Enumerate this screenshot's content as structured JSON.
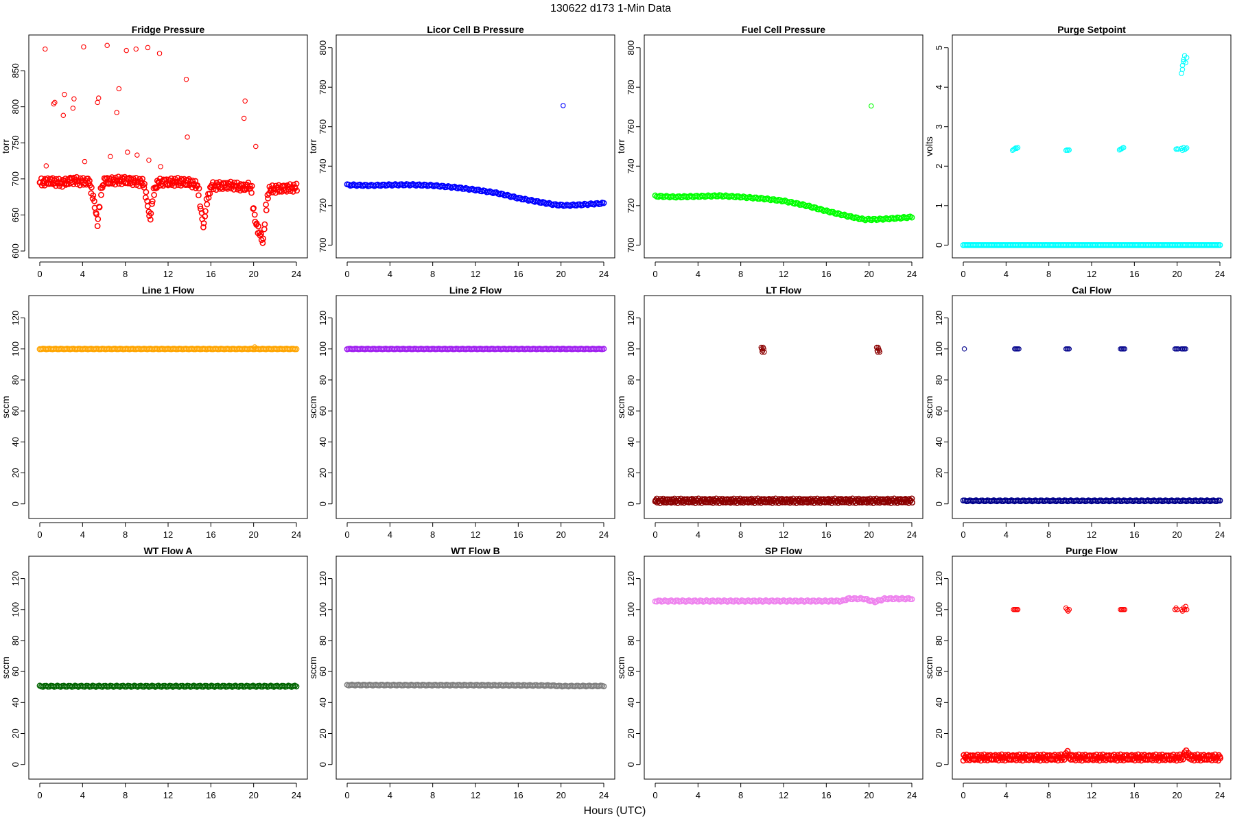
{
  "figure": {
    "title": "130622   d173   1-Min Data",
    "xlabel": "Hours (UTC)"
  },
  "chart_data": [
    {
      "type": "scatter",
      "title": "Fridge Pressure",
      "ylabel": "torr",
      "xlabel": "",
      "xlim": [
        0,
        24
      ],
      "ylim": [
        600,
        890
      ],
      "xticks": [
        0,
        4,
        8,
        12,
        16,
        20,
        24
      ],
      "yticks": [
        600,
        650,
        700,
        750,
        800,
        850
      ],
      "color": "#ff0000",
      "series": [
        {
          "style": "band",
          "x": [
            0,
            1,
            2,
            3,
            4,
            4.6,
            5,
            5.4,
            5.7,
            6,
            8,
            9,
            9.7,
            10,
            10.3,
            10.6,
            11,
            13,
            14,
            14.8,
            15,
            15.3,
            15.6,
            16,
            18,
            19,
            19.5,
            19.8,
            20,
            20.5,
            20.9,
            21.1,
            21.4,
            22,
            24
          ],
          "y": [
            695,
            697,
            694,
            698,
            696,
            697,
            672,
            640,
            682,
            697,
            698,
            696,
            695,
            670,
            642,
            680,
            695,
            696,
            695,
            690,
            660,
            636,
            668,
            690,
            691,
            688,
            690,
            686,
            650,
            625,
            613,
            655,
            685,
            686,
            688
          ],
          "spread": 6
        },
        {
          "style": "points",
          "x": [
            0.5,
            0.6,
            1.3,
            1.4,
            2.2,
            2.3,
            3.1,
            3.2,
            4.1,
            4.2,
            5.4,
            5.5,
            6.3,
            6.6,
            7.2,
            7.4,
            8.1,
            8.2,
            9.0,
            9.1,
            10.1,
            10.2,
            11.2,
            11.3,
            13.7,
            13.8,
            19.1,
            19.2,
            20.2
          ],
          "y": [
            880,
            718,
            804,
            806,
            788,
            817,
            798,
            811,
            883,
            724,
            806,
            812,
            885,
            731,
            792,
            825,
            878,
            737,
            880,
            733,
            882,
            726,
            874,
            717,
            838,
            758,
            784,
            808,
            745
          ]
        }
      ]
    },
    {
      "type": "scatter",
      "title": "Licor Cell B Pressure",
      "ylabel": "torr",
      "xlabel": "",
      "xlim": [
        0,
        24
      ],
      "ylim": [
        697,
        803
      ],
      "xticks": [
        0,
        4,
        8,
        12,
        16,
        20,
        24
      ],
      "yticks": [
        700,
        720,
        740,
        760,
        780,
        800
      ],
      "color": "#0000ff",
      "series": [
        {
          "style": "band",
          "x": [
            0,
            2,
            4,
            6,
            8,
            10,
            12,
            14,
            16,
            18,
            19.5,
            20.5,
            22,
            24
          ],
          "y": [
            730.5,
            730.2,
            730.5,
            730.6,
            730.2,
            729.3,
            728.0,
            726.4,
            723.8,
            721.8,
            720.4,
            720.1,
            720.5,
            721.2
          ],
          "spread": 0.4
        },
        {
          "style": "points",
          "x": [
            20.2
          ],
          "y": [
            770.7
          ]
        }
      ]
    },
    {
      "type": "scatter",
      "title": "Fuel Cell Pressure",
      "ylabel": "torr",
      "xlabel": "",
      "xlim": [
        0,
        24
      ],
      "ylim": [
        697,
        803
      ],
      "xticks": [
        0,
        4,
        8,
        12,
        16,
        20,
        24
      ],
      "yticks": [
        700,
        720,
        740,
        760,
        780,
        800
      ],
      "color": "#00ff00",
      "series": [
        {
          "style": "band",
          "x": [
            0,
            2,
            4,
            6,
            8,
            10,
            12,
            14,
            16,
            18,
            19.5,
            20.5,
            22,
            24
          ],
          "y": [
            724.8,
            724.4,
            724.7,
            725.0,
            724.4,
            723.6,
            722.4,
            720.2,
            717.3,
            714.7,
            713.0,
            713.0,
            713.4,
            714.2
          ],
          "spread": 0.4
        },
        {
          "style": "points",
          "x": [
            20.2
          ],
          "y": [
            770.5
          ]
        }
      ]
    },
    {
      "type": "scatter",
      "title": "Purge Setpoint",
      "ylabel": "volts",
      "xlabel": "",
      "xlim": [
        0,
        24
      ],
      "ylim": [
        -0.15,
        5.15
      ],
      "xticks": [
        0,
        4,
        8,
        12,
        16,
        20,
        24
      ],
      "yticks": [
        0,
        1,
        2,
        3,
        4,
        5
      ],
      "color": "#00ffff",
      "series": [
        {
          "style": "band",
          "x": [
            0,
            24
          ],
          "y": [
            0,
            0
          ],
          "spread": 0
        },
        {
          "style": "points",
          "x": [
            4.6,
            4.7,
            4.8,
            4.9,
            5.0,
            5.1,
            9.6,
            9.7,
            9.8,
            9.9,
            14.6,
            14.7,
            14.8,
            14.9,
            15.0,
            19.9,
            20.0,
            20.1,
            20.4,
            20.5,
            20.6,
            20.7,
            20.8,
            20.9,
            20.4,
            20.5,
            20.6,
            20.7,
            20.8,
            20.9,
            20.5,
            20.6
          ],
          "y": [
            2.4,
            2.42,
            2.44,
            2.46,
            2.45,
            2.47,
            2.4,
            2.41,
            2.4,
            2.41,
            2.41,
            2.43,
            2.44,
            2.46,
            2.47,
            2.43,
            2.44,
            2.43,
            2.45,
            2.4,
            2.47,
            2.42,
            2.44,
            2.46,
            4.35,
            4.55,
            4.7,
            4.8,
            4.62,
            4.75,
            4.45,
            4.65
          ]
        }
      ]
    },
    {
      "type": "scatter",
      "title": "Line 1 Flow",
      "ylabel": "sccm",
      "xlabel": "",
      "xlim": [
        0,
        24
      ],
      "ylim": [
        -5,
        130
      ],
      "xticks": [
        0,
        4,
        8,
        12,
        16,
        20,
        24
      ],
      "yticks": [
        0,
        20,
        40,
        60,
        80,
        100,
        120
      ],
      "color": "#ffa500",
      "series": [
        {
          "style": "band",
          "x": [
            0,
            24
          ],
          "y": [
            100,
            100
          ],
          "spread": 0.2
        },
        {
          "style": "points",
          "x": [
            20.1
          ],
          "y": [
            101.3
          ]
        }
      ]
    },
    {
      "type": "scatter",
      "title": "Line 2 Flow",
      "ylabel": "sccm",
      "xlabel": "",
      "xlim": [
        0,
        24
      ],
      "ylim": [
        -5,
        130
      ],
      "xticks": [
        0,
        4,
        8,
        12,
        16,
        20,
        24
      ],
      "yticks": [
        0,
        20,
        40,
        60,
        80,
        100,
        120
      ],
      "color": "#a020f0",
      "series": [
        {
          "style": "band",
          "x": [
            0,
            24
          ],
          "y": [
            100,
            100
          ],
          "spread": 0.2
        },
        {
          "style": "points",
          "x": [
            20.1
          ],
          "y": [
            100.4
          ]
        }
      ]
    },
    {
      "type": "scatter",
      "title": "LT Flow",
      "ylabel": "sccm",
      "xlabel": "",
      "xlim": [
        0,
        24
      ],
      "ylim": [
        -5,
        130
      ],
      "xticks": [
        0,
        4,
        8,
        12,
        16,
        20,
        24
      ],
      "yticks": [
        0,
        20,
        40,
        60,
        80,
        100,
        120
      ],
      "color": "#8b0000",
      "series": [
        {
          "style": "band",
          "x": [
            0,
            24
          ],
          "y": [
            2,
            2
          ],
          "spread": 1.6
        },
        {
          "style": "points",
          "x": [
            9.9,
            10.0,
            10.1,
            10.2,
            9.95,
            10.05,
            10.15,
            20.7,
            20.8,
            20.9,
            21.0,
            20.75,
            20.85,
            20.95
          ],
          "y": [
            101,
            98,
            101,
            98,
            100,
            99,
            100,
            101,
            98,
            100,
            98,
            99,
            101,
            99
          ]
        }
      ]
    },
    {
      "type": "scatter",
      "title": "Cal Flow",
      "ylabel": "sccm",
      "xlabel": "",
      "xlim": [
        0,
        24
      ],
      "ylim": [
        -5,
        130
      ],
      "xticks": [
        0,
        4,
        8,
        12,
        16,
        20,
        24
      ],
      "yticks": [
        0,
        20,
        40,
        60,
        80,
        100,
        120
      ],
      "color": "#00008b",
      "series": [
        {
          "style": "band",
          "x": [
            0,
            24
          ],
          "y": [
            2,
            2
          ],
          "spread": 0.3
        },
        {
          "style": "points",
          "x": [
            0.1,
            4.8,
            4.9,
            5.0,
            5.1,
            5.2,
            9.6,
            9.7,
            9.8,
            9.9,
            14.7,
            14.8,
            14.9,
            15.0,
            15.1,
            19.8,
            19.9,
            20.0,
            20.1,
            20.4,
            20.5,
            20.6,
            20.7,
            20.8
          ],
          "y": [
            100,
            100,
            100,
            100,
            100,
            100,
            100,
            100,
            100,
            100,
            100,
            100,
            100,
            100,
            100,
            100,
            100,
            100,
            100,
            100,
            100,
            100,
            100,
            100
          ]
        }
      ]
    },
    {
      "type": "scatter",
      "title": "WT Flow A",
      "ylabel": "sccm",
      "xlabel": "",
      "xlim": [
        0,
        24
      ],
      "ylim": [
        -5,
        130
      ],
      "xticks": [
        0,
        4,
        8,
        12,
        16,
        20,
        24
      ],
      "yticks": [
        0,
        20,
        40,
        60,
        80,
        100,
        120
      ],
      "color": "#006400",
      "series": [
        {
          "style": "band",
          "x": [
            0,
            24
          ],
          "y": [
            50.5,
            50.5
          ],
          "spread": 0.4
        }
      ]
    },
    {
      "type": "scatter",
      "title": "WT Flow B",
      "ylabel": "sccm",
      "xlabel": "",
      "xlim": [
        0,
        24
      ],
      "ylim": [
        -5,
        130
      ],
      "xticks": [
        0,
        4,
        8,
        12,
        16,
        20,
        24
      ],
      "yticks": [
        0,
        20,
        40,
        60,
        80,
        100,
        120
      ],
      "color": "#808080",
      "series": [
        {
          "style": "band",
          "x": [
            0,
            12,
            19,
            20,
            24
          ],
          "y": [
            51.3,
            51.2,
            51.0,
            50.6,
            50.7
          ],
          "spread": 0.3
        }
      ]
    },
    {
      "type": "scatter",
      "title": "SP Flow",
      "ylabel": "sccm",
      "xlabel": "",
      "xlim": [
        0,
        24
      ],
      "ylim": [
        -5,
        130
      ],
      "xticks": [
        0,
        4,
        8,
        12,
        16,
        20,
        24
      ],
      "yticks": [
        0,
        20,
        40,
        60,
        80,
        100,
        120
      ],
      "color": "#ee82ee",
      "series": [
        {
          "style": "band",
          "x": [
            0,
            17.5,
            18,
            19.5,
            20,
            20.5,
            21,
            21.5,
            24
          ],
          "y": [
            105.5,
            105.5,
            107.0,
            107.0,
            106.0,
            105.0,
            106.0,
            107.0,
            107.0
          ],
          "spread": 0.5
        }
      ]
    },
    {
      "type": "scatter",
      "title": "Purge Flow",
      "ylabel": "sccm",
      "xlabel": "",
      "xlim": [
        0,
        24
      ],
      "ylim": [
        -5,
        130
      ],
      "xticks": [
        0,
        4,
        8,
        12,
        16,
        20,
        24
      ],
      "yticks": [
        0,
        20,
        40,
        60,
        80,
        100,
        120
      ],
      "color": "#ff0000",
      "series": [
        {
          "style": "band",
          "x": [
            0,
            9.4,
            9.7,
            10.0,
            20.5,
            20.8,
            21.2,
            24
          ],
          "y": [
            4.5,
            4.5,
            7.5,
            4.5,
            4.5,
            8.0,
            4.5,
            4.5
          ],
          "spread": 2.2
        },
        {
          "style": "points",
          "x": [
            4.7,
            4.8,
            4.9,
            5.0,
            5.1,
            9.6,
            9.7,
            9.8,
            9.9,
            14.7,
            14.8,
            14.9,
            15.0,
            15.1,
            19.8,
            19.9,
            20.0,
            20.4,
            20.5,
            20.6,
            20.7,
            20.8,
            20.9
          ],
          "y": [
            100,
            100,
            100,
            100,
            100,
            101,
            100,
            99,
            100,
            100,
            100,
            100,
            100,
            100,
            100,
            101,
            100,
            100,
            99,
            101,
            100,
            102,
            100
          ]
        }
      ]
    }
  ]
}
